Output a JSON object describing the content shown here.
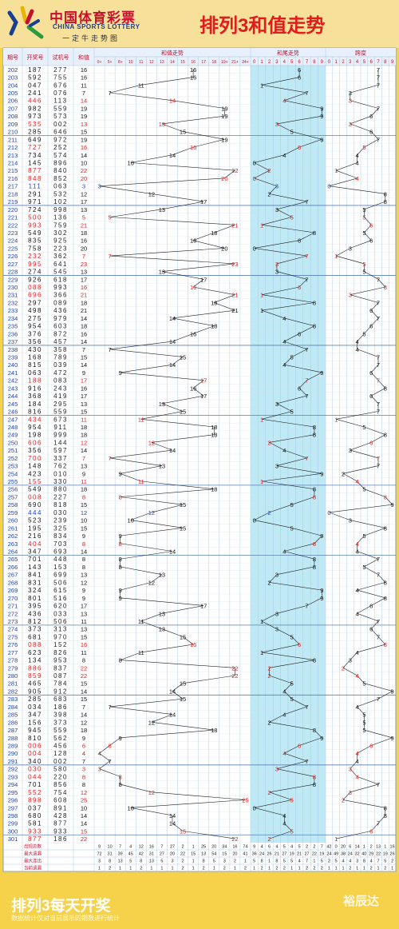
{
  "header": {
    "logo_cn": "中国体育彩票",
    "logo_en": "CHINA SPORTS LOTTERY",
    "logo_sub": "一定牛走势图",
    "title": "排列3和值走势"
  },
  "footer": {
    "title": "排列3每天开奖",
    "note": "数据统计仅对当前展示的期数进行统计",
    "watermark": "裕辰达"
  },
  "colors": {
    "red": "#e01c1c",
    "blue": "#1a3fd0",
    "black": "#111111",
    "header_red": "#c8102e",
    "band": "#bfeaf5",
    "grid": "#9fbfe0"
  },
  "columns": {
    "issue": "期号",
    "draw": "开奖号",
    "test": "试机号",
    "sum": "和值",
    "sum_trend": "和值走势",
    "tail_trend": "和尾走势",
    "span": "跨度"
  },
  "sum_headers": [
    "0+",
    "5+",
    "8+",
    "10",
    "11",
    "12",
    "13",
    "14",
    "15",
    "16",
    "17",
    "18",
    "19+",
    "21+",
    "24+"
  ],
  "digit_headers": [
    "0",
    "1",
    "2",
    "3",
    "4",
    "5",
    "6",
    "7",
    "8",
    "9"
  ],
  "rows": [
    {
      "issue": "202",
      "draw": "187",
      "test": "277",
      "sum": 16,
      "c": "k"
    },
    {
      "issue": "203",
      "draw": "592",
      "test": "755",
      "sum": 16,
      "c": "k"
    },
    {
      "issue": "204",
      "draw": "047",
      "test": "676",
      "sum": 11,
      "c": "k"
    },
    {
      "issue": "205",
      "draw": "241",
      "test": "076",
      "sum": 7,
      "c": "k"
    },
    {
      "issue": "206",
      "draw": "446",
      "test": "113",
      "sum": 14,
      "c": "r"
    },
    {
      "issue": "207",
      "draw": "982",
      "test": "559",
      "sum": 19,
      "c": "k"
    },
    {
      "issue": "208",
      "draw": "973",
      "test": "573",
      "sum": 19,
      "c": "k"
    },
    {
      "issue": "209",
      "draw": "535",
      "test": "002",
      "sum": 13,
      "c": "r"
    },
    {
      "issue": "210",
      "draw": "285",
      "test": "646",
      "sum": 15,
      "c": "k"
    },
    {
      "issue": "211",
      "draw": "649",
      "test": "972",
      "sum": 19,
      "c": "k"
    },
    {
      "issue": "212",
      "draw": "727",
      "test": "252",
      "sum": 16,
      "c": "r"
    },
    {
      "issue": "213",
      "draw": "734",
      "test": "574",
      "sum": 14,
      "c": "k"
    },
    {
      "issue": "214",
      "draw": "145",
      "test": "896",
      "sum": 10,
      "c": "k"
    },
    {
      "issue": "215",
      "draw": "877",
      "test": "840",
      "sum": 22,
      "c": "r"
    },
    {
      "issue": "216",
      "draw": "848",
      "test": "852",
      "sum": 20,
      "c": "r"
    },
    {
      "issue": "217",
      "draw": "111",
      "test": "063",
      "sum": 3,
      "c": "b"
    },
    {
      "issue": "218",
      "draw": "291",
      "test": "532",
      "sum": 12,
      "c": "k"
    },
    {
      "issue": "219",
      "draw": "971",
      "test": "102",
      "sum": 17,
      "c": "k"
    },
    {
      "issue": "220",
      "draw": "724",
      "test": "998",
      "sum": 13,
      "c": "k"
    },
    {
      "issue": "221",
      "draw": "500",
      "test": "136",
      "sum": 5,
      "c": "r"
    },
    {
      "issue": "222",
      "draw": "993",
      "test": "759",
      "sum": 21,
      "c": "r"
    },
    {
      "issue": "223",
      "draw": "549",
      "test": "302",
      "sum": 18,
      "c": "k"
    },
    {
      "issue": "224",
      "draw": "835",
      "test": "925",
      "sum": 16,
      "c": "k"
    },
    {
      "issue": "225",
      "draw": "758",
      "test": "223",
      "sum": 20,
      "c": "k"
    },
    {
      "issue": "226",
      "draw": "232",
      "test": "362",
      "sum": 7,
      "c": "r"
    },
    {
      "issue": "227",
      "draw": "995",
      "test": "641",
      "sum": 23,
      "c": "r"
    },
    {
      "issue": "228",
      "draw": "274",
      "test": "545",
      "sum": 13,
      "c": "k"
    },
    {
      "issue": "229",
      "draw": "926",
      "test": "618",
      "sum": 17,
      "c": "k"
    },
    {
      "issue": "230",
      "draw": "088",
      "test": "993",
      "sum": 16,
      "c": "r"
    },
    {
      "issue": "231",
      "draw": "696",
      "test": "366",
      "sum": 21,
      "c": "r"
    },
    {
      "issue": "232",
      "draw": "297",
      "test": "089",
      "sum": 18,
      "c": "k"
    },
    {
      "issue": "233",
      "draw": "498",
      "test": "436",
      "sum": 21,
      "c": "k"
    },
    {
      "issue": "234",
      "draw": "275",
      "test": "979",
      "sum": 14,
      "c": "k"
    },
    {
      "issue": "235",
      "draw": "954",
      "test": "603",
      "sum": 18,
      "c": "k"
    },
    {
      "issue": "236",
      "draw": "376",
      "test": "872",
      "sum": 16,
      "c": "k"
    },
    {
      "issue": "237",
      "draw": "356",
      "test": "457",
      "sum": 14,
      "c": "k"
    },
    {
      "issue": "238",
      "draw": "430",
      "test": "358",
      "sum": 7,
      "c": "k"
    },
    {
      "issue": "239",
      "draw": "168",
      "test": "789",
      "sum": 15,
      "c": "k"
    },
    {
      "issue": "240",
      "draw": "815",
      "test": "039",
      "sum": 14,
      "c": "k"
    },
    {
      "issue": "241",
      "draw": "063",
      "test": "472",
      "sum": 9,
      "c": "k"
    },
    {
      "issue": "242",
      "draw": "188",
      "test": "083",
      "sum": 17,
      "c": "r"
    },
    {
      "issue": "243",
      "draw": "916",
      "test": "243",
      "sum": 16,
      "c": "k"
    },
    {
      "issue": "244",
      "draw": "368",
      "test": "419",
      "sum": 17,
      "c": "k"
    },
    {
      "issue": "245",
      "draw": "184",
      "test": "295",
      "sum": 13,
      "c": "k"
    },
    {
      "issue": "246",
      "draw": "816",
      "test": "559",
      "sum": 15,
      "c": "k"
    },
    {
      "issue": "247",
      "draw": "434",
      "test": "673",
      "sum": 11,
      "c": "r"
    },
    {
      "issue": "248",
      "draw": "954",
      "test": "911",
      "sum": 18,
      "c": "k"
    },
    {
      "issue": "249",
      "draw": "198",
      "test": "999",
      "sum": 18,
      "c": "k"
    },
    {
      "issue": "250",
      "draw": "606",
      "test": "144",
      "sum": 12,
      "c": "r"
    },
    {
      "issue": "251",
      "draw": "356",
      "test": "597",
      "sum": 14,
      "c": "k"
    },
    {
      "issue": "252",
      "draw": "700",
      "test": "337",
      "sum": 7,
      "c": "r"
    },
    {
      "issue": "253",
      "draw": "148",
      "test": "762",
      "sum": 13,
      "c": "k"
    },
    {
      "issue": "254",
      "draw": "423",
      "test": "010",
      "sum": 9,
      "c": "k"
    },
    {
      "issue": "255",
      "draw": "155",
      "test": "330",
      "sum": 11,
      "c": "r"
    },
    {
      "issue": "256",
      "draw": "549",
      "test": "880",
      "sum": 18,
      "c": "k"
    },
    {
      "issue": "257",
      "draw": "008",
      "test": "227",
      "sum": 8,
      "c": "r"
    },
    {
      "issue": "258",
      "draw": "690",
      "test": "818",
      "sum": 15,
      "c": "k"
    },
    {
      "issue": "259",
      "draw": "444",
      "test": "030",
      "sum": 12,
      "c": "b"
    },
    {
      "issue": "260",
      "draw": "523",
      "test": "239",
      "sum": 10,
      "c": "k"
    },
    {
      "issue": "261",
      "draw": "195",
      "test": "325",
      "sum": 15,
      "c": "k"
    },
    {
      "issue": "262",
      "draw": "216",
      "test": "834",
      "sum": 9,
      "c": "k"
    },
    {
      "issue": "263",
      "draw": "404",
      "test": "703",
      "sum": 8,
      "c": "r"
    },
    {
      "issue": "264",
      "draw": "347",
      "test": "693",
      "sum": 14,
      "c": "k"
    },
    {
      "issue": "265",
      "draw": "701",
      "test": "448",
      "sum": 8,
      "c": "k"
    },
    {
      "issue": "266",
      "draw": "143",
      "test": "153",
      "sum": 8,
      "c": "k"
    },
    {
      "issue": "267",
      "draw": "841",
      "test": "699",
      "sum": 13,
      "c": "k"
    },
    {
      "issue": "268",
      "draw": "831",
      "test": "506",
      "sum": 12,
      "c": "k"
    },
    {
      "issue": "269",
      "draw": "324",
      "test": "615",
      "sum": 9,
      "c": "k"
    },
    {
      "issue": "270",
      "draw": "801",
      "test": "516",
      "sum": 9,
      "c": "k"
    },
    {
      "issue": "271",
      "draw": "395",
      "test": "620",
      "sum": 17,
      "c": "k"
    },
    {
      "issue": "272",
      "draw": "436",
      "test": "033",
      "sum": 13,
      "c": "k"
    },
    {
      "issue": "273",
      "draw": "812",
      "test": "506",
      "sum": 11,
      "c": "k"
    },
    {
      "issue": "274",
      "draw": "373",
      "test": "313",
      "sum": 13,
      "c": "k"
    },
    {
      "issue": "275",
      "draw": "681",
      "test": "970",
      "sum": 15,
      "c": "k"
    },
    {
      "issue": "276",
      "draw": "088",
      "test": "152",
      "sum": 16,
      "c": "r"
    },
    {
      "issue": "277",
      "draw": "623",
      "test": "826",
      "sum": 11,
      "c": "k"
    },
    {
      "issue": "278",
      "draw": "134",
      "test": "953",
      "sum": 8,
      "c": "k"
    },
    {
      "issue": "279",
      "draw": "886",
      "test": "837",
      "sum": 22,
      "c": "r"
    },
    {
      "issue": "280",
      "draw": "859",
      "test": "087",
      "sum": 22,
      "c": "r"
    },
    {
      "issue": "281",
      "draw": "465",
      "test": "784",
      "sum": 15,
      "c": "k"
    },
    {
      "issue": "282",
      "draw": "905",
      "test": "912",
      "sum": 14,
      "c": "k"
    },
    {
      "issue": "283",
      "draw": "285",
      "test": "683",
      "sum": 15,
      "c": "k"
    },
    {
      "issue": "284",
      "draw": "034",
      "test": "186",
      "sum": 7,
      "c": "k"
    },
    {
      "issue": "285",
      "draw": "347",
      "test": "398",
      "sum": 14,
      "c": "k"
    },
    {
      "issue": "286",
      "draw": "156",
      "test": "373",
      "sum": 12,
      "c": "k"
    },
    {
      "issue": "287",
      "draw": "945",
      "test": "559",
      "sum": 18,
      "c": "k"
    },
    {
      "issue": "288",
      "draw": "810",
      "test": "562",
      "sum": 9,
      "c": "k"
    },
    {
      "issue": "289",
      "draw": "006",
      "test": "456",
      "sum": 6,
      "c": "r"
    },
    {
      "issue": "290",
      "draw": "004",
      "test": "128",
      "sum": 4,
      "c": "r"
    },
    {
      "issue": "291",
      "draw": "340",
      "test": "002",
      "sum": 7,
      "c": "k"
    },
    {
      "issue": "292",
      "draw": "030",
      "test": "580",
      "sum": 3,
      "c": "r"
    },
    {
      "issue": "293",
      "draw": "044",
      "test": "220",
      "sum": 8,
      "c": "r"
    },
    {
      "issue": "294",
      "draw": "701",
      "test": "856",
      "sum": 8,
      "c": "k"
    },
    {
      "issue": "295",
      "draw": "552",
      "test": "754",
      "sum": 12,
      "c": "r"
    },
    {
      "issue": "296",
      "draw": "898",
      "test": "608",
      "sum": 25,
      "c": "r"
    },
    {
      "issue": "297",
      "draw": "037",
      "test": "891",
      "sum": 10,
      "c": "k"
    },
    {
      "issue": "298",
      "draw": "680",
      "test": "428",
      "sum": 14,
      "c": "k"
    },
    {
      "issue": "299",
      "draw": "581",
      "test": "877",
      "sum": 14,
      "c": "k"
    },
    {
      "issue": "300",
      "draw": "933",
      "test": "933",
      "sum": 15,
      "c": "r"
    },
    {
      "issue": "301",
      "draw": "877",
      "test": "186",
      "sum": 22,
      "c": "r"
    }
  ],
  "stats": {
    "labels": [
      "出现总数",
      "最大遗漏",
      "最大连出",
      "当前遗漏"
    ],
    "sum_rows": [
      [
        "9",
        "10",
        "7",
        "4",
        "12",
        "16",
        "7",
        "27",
        "2",
        "1",
        "25",
        "20",
        "34",
        "16",
        "74"
      ],
      [
        "72",
        "31",
        "39",
        "45",
        "42",
        "31",
        "27",
        "20",
        "22",
        "15",
        "13",
        "54",
        "15",
        "20",
        "41"
      ],
      [
        "3",
        "8",
        "13",
        "5",
        "8",
        "13",
        "5",
        "3",
        "2",
        "1",
        "8",
        "5",
        "3",
        "2",
        "1"
      ],
      [
        "1",
        "2",
        "1",
        "1",
        "2",
        "1",
        "1",
        "1",
        "2",
        "1",
        "2",
        "1",
        "2",
        "1",
        "2"
      ]
    ],
    "tail_rows": [
      [
        "9",
        "4",
        "6",
        "4",
        "5",
        "4",
        "5",
        "2",
        "2",
        "7"
      ],
      [
        "36",
        "24",
        "26",
        "21",
        "27",
        "19",
        "21",
        "27",
        "22",
        "19"
      ],
      [
        "5",
        "8",
        "1",
        "8",
        "5",
        "5",
        "4",
        "7",
        "1",
        "5"
      ],
      [
        "1",
        "2",
        "1",
        "2",
        "2",
        "1",
        "1",
        "2",
        "2",
        "2"
      ]
    ],
    "span_rows": [
      [
        "42",
        "0",
        "20",
        "6",
        "14",
        "1",
        "2",
        "13",
        "1",
        "16"
      ],
      [
        "24",
        "49",
        "38",
        "24",
        "32",
        "40",
        "29",
        "22",
        "19",
        "26"
      ],
      [
        "2",
        "5",
        "4",
        "4",
        "3",
        "8",
        "4",
        "7",
        "5",
        "2"
      ],
      [
        "1",
        "1",
        "1",
        "2",
        "1",
        "1",
        "2",
        "1",
        "2",
        "1"
      ]
    ]
  },
  "chart_data": {
    "type": "line",
    "title": "排列3和值走势",
    "x": [
      "202",
      "203",
      "204",
      "205",
      "206",
      "207",
      "208",
      "209",
      "210",
      "211",
      "212",
      "213",
      "214",
      "215",
      "216",
      "217",
      "218",
      "219",
      "220",
      "221",
      "222",
      "223",
      "224",
      "225",
      "226",
      "227",
      "228",
      "229",
      "230",
      "231",
      "232",
      "233",
      "234",
      "235",
      "236",
      "237",
      "238",
      "239",
      "240",
      "241",
      "242",
      "243",
      "244",
      "245",
      "246",
      "247",
      "248",
      "249",
      "250",
      "251",
      "252",
      "253",
      "254",
      "255",
      "256",
      "257",
      "258",
      "259",
      "260",
      "261",
      "262",
      "263",
      "264",
      "265",
      "266",
      "267",
      "268",
      "269",
      "270",
      "271",
      "272",
      "273",
      "274",
      "275",
      "276",
      "277",
      "278",
      "279",
      "280",
      "281",
      "282",
      "283",
      "284",
      "285",
      "286",
      "287",
      "288",
      "289",
      "290",
      "291",
      "292",
      "293",
      "294",
      "295",
      "296",
      "297",
      "298",
      "299",
      "300",
      "301"
    ],
    "series": [
      {
        "name": "和值走势",
        "values": [
          16,
          16,
          11,
          7,
          14,
          19,
          19,
          13,
          15,
          19,
          16,
          14,
          10,
          22,
          20,
          3,
          12,
          17,
          13,
          5,
          21,
          18,
          16,
          20,
          7,
          23,
          13,
          17,
          16,
          21,
          18,
          21,
          14,
          18,
          16,
          14,
          7,
          15,
          14,
          9,
          17,
          16,
          17,
          13,
          15,
          11,
          18,
          18,
          12,
          14,
          7,
          13,
          9,
          11,
          18,
          8,
          15,
          12,
          10,
          15,
          9,
          8,
          14,
          8,
          8,
          13,
          12,
          9,
          9,
          17,
          13,
          11,
          13,
          15,
          16,
          11,
          8,
          22,
          22,
          15,
          14,
          15,
          7,
          14,
          12,
          18,
          9,
          6,
          4,
          7,
          3,
          8,
          8,
          12,
          25,
          10,
          14,
          14,
          15,
          22
        ]
      },
      {
        "name": "和尾走势",
        "values": [
          6,
          6,
          1,
          7,
          4,
          9,
          9,
          3,
          5,
          9,
          6,
          4,
          0,
          2,
          0,
          3,
          2,
          7,
          3,
          5,
          1,
          8,
          6,
          0,
          7,
          3,
          3,
          7,
          6,
          1,
          8,
          1,
          4,
          8,
          6,
          4,
          7,
          5,
          4,
          9,
          7,
          6,
          7,
          3,
          5,
          1,
          8,
          8,
          2,
          4,
          7,
          3,
          9,
          1,
          8,
          8,
          5,
          2,
          0,
          5,
          9,
          8,
          4,
          8,
          8,
          3,
          2,
          9,
          9,
          7,
          3,
          1,
          3,
          5,
          6,
          1,
          8,
          2,
          2,
          5,
          4,
          5,
          7,
          4,
          2,
          8,
          9,
          6,
          4,
          7,
          3,
          8,
          8,
          2,
          5,
          0,
          4,
          4,
          5,
          2
        ]
      },
      {
        "name": "跨度",
        "values": [
          7,
          7,
          7,
          3,
          3,
          7,
          6,
          3,
          6,
          7,
          5,
          4,
          4,
          1,
          4,
          0,
          8,
          8,
          5,
          5,
          6,
          5,
          6,
          3,
          1,
          5,
          5,
          7,
          8,
          3,
          7,
          6,
          7,
          6,
          5,
          4,
          4,
          7,
          7,
          6,
          7,
          8,
          6,
          7,
          7,
          1,
          5,
          8,
          6,
          3,
          7,
          7,
          2,
          4,
          5,
          8,
          9,
          0,
          3,
          8,
          5,
          4,
          4,
          7,
          5,
          7,
          8,
          4,
          8,
          6,
          4,
          7,
          6,
          7,
          8,
          4,
          3,
          2,
          4,
          5,
          9,
          7,
          4,
          5,
          5,
          5,
          9,
          6,
          4,
          4,
          3,
          4,
          7,
          3,
          2,
          8,
          8,
          7,
          6,
          1
        ]
      }
    ],
    "grid": true
  }
}
